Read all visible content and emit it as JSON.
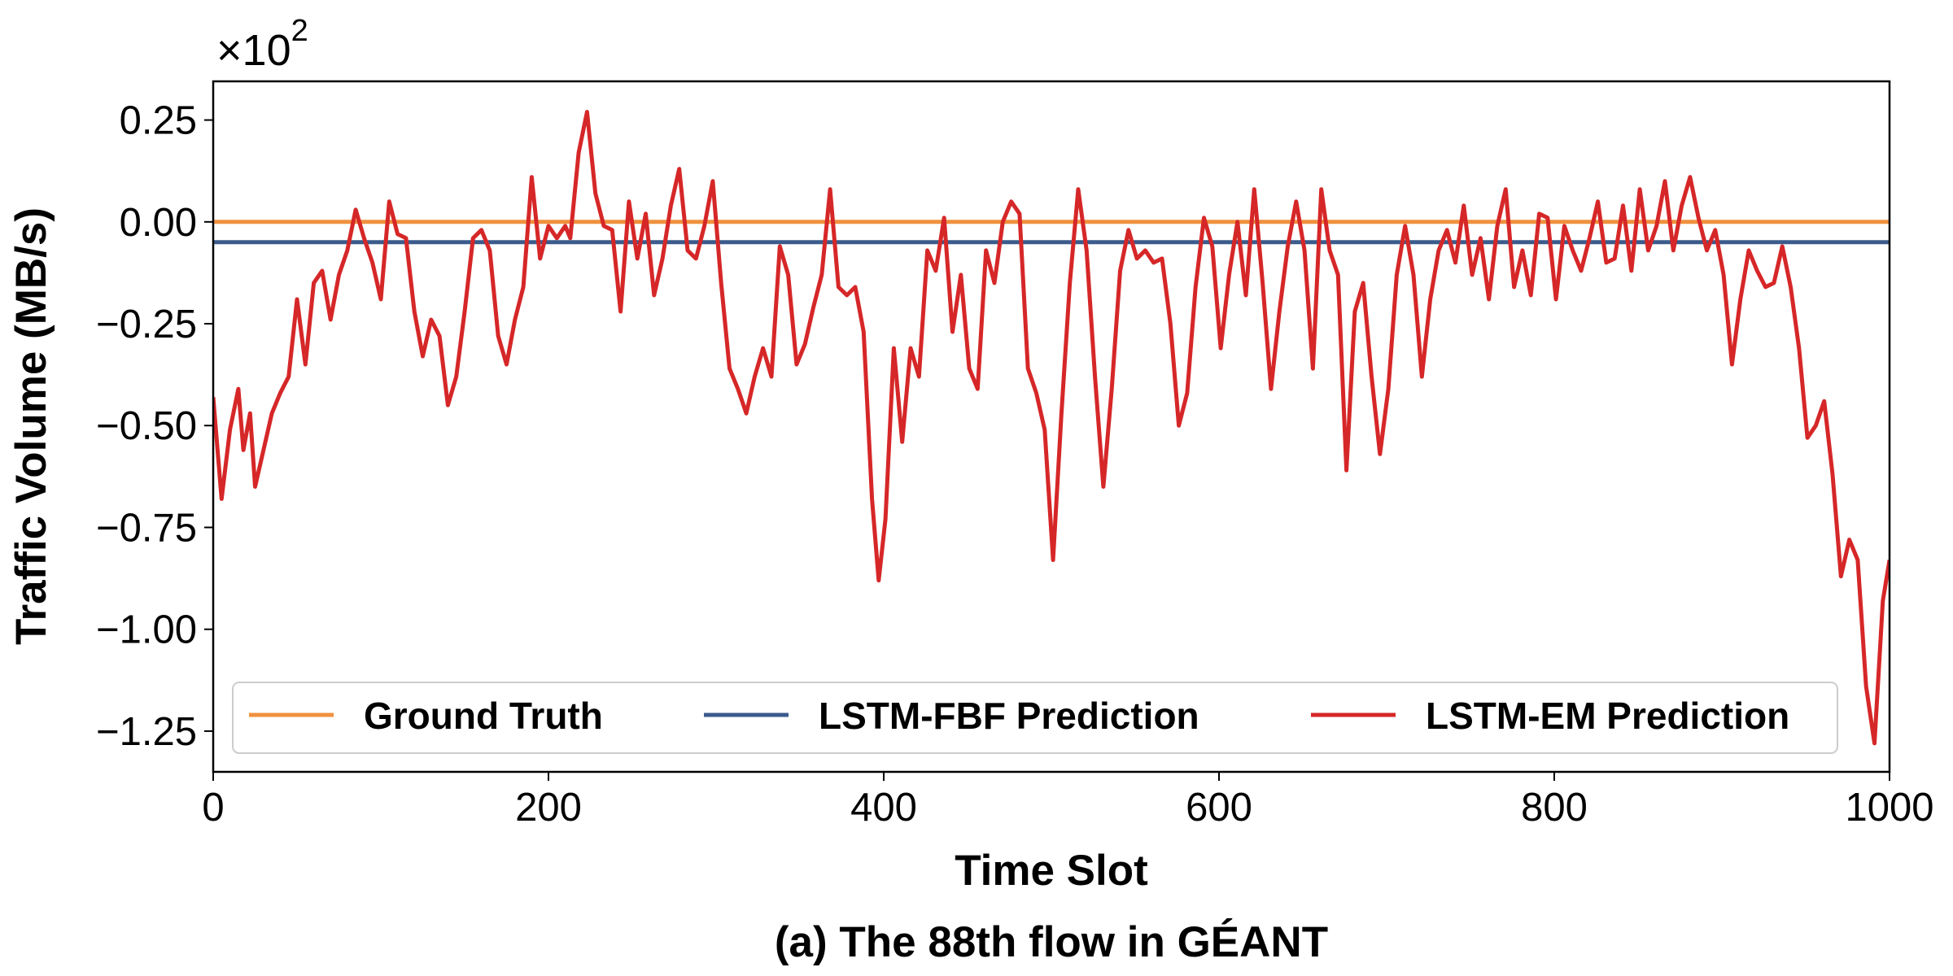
{
  "chart_data": {
    "type": "line",
    "title": "(a) The 88th flow in GÉANT",
    "xlabel": "Time Slot",
    "ylabel": "Traffic Volume (MB/s)",
    "y_multiplier": "×10",
    "y_multiplier_exponent": "2",
    "xlim": [
      0,
      1000
    ],
    "xticks": [
      0,
      200,
      400,
      600,
      800,
      1000
    ],
    "ylim": [
      -1.35,
      0.345
    ],
    "yticks": [
      0.25,
      {
        "value": 0,
        "label": "0.00"
      },
      {
        "value": -0.25,
        "label": "−0.25"
      },
      {
        "value": -0.5,
        "label": "−0.50"
      },
      {
        "value": -0.75,
        "label": "−0.75"
      },
      {
        "value": -1,
        "label": "−1.00"
      },
      {
        "value": -1.25,
        "label": "−1.25"
      }
    ],
    "grid": false,
    "legend": "lower center",
    "series": [
      {
        "name": "Ground Truth",
        "color": "#f0913e",
        "x": [
          0,
          1000
        ],
        "values": [
          0,
          0
        ]
      },
      {
        "name": "LSTM-FBF Prediction",
        "color": "#3b5b8c",
        "x": [
          0,
          1000
        ],
        "values": [
          -0.05,
          -0.05
        ]
      },
      {
        "name": "LSTM-EM Prediction",
        "color": "#d62728",
        "x": [
          0,
          5,
          10,
          15,
          18,
          22,
          25,
          30,
          35,
          40,
          45,
          50,
          55,
          60,
          65,
          70,
          75,
          80,
          85,
          90,
          95,
          100,
          105,
          110,
          115,
          120,
          125,
          130,
          135,
          140,
          145,
          150,
          155,
          160,
          165,
          170,
          175,
          180,
          185,
          190,
          195,
          200,
          205,
          210,
          213,
          218,
          223,
          228,
          233,
          238,
          243,
          248,
          253,
          258,
          263,
          268,
          273,
          278,
          283,
          288,
          293,
          298,
          303,
          308,
          313,
          318,
          323,
          328,
          333,
          338,
          343,
          348,
          353,
          358,
          363,
          368,
          373,
          378,
          383,
          388,
          393,
          397,
          401,
          406,
          411,
          416,
          421,
          426,
          431,
          436,
          441,
          446,
          451,
          456,
          461,
          466,
          471,
          476,
          481,
          486,
          491,
          496,
          501,
          506,
          511,
          516,
          521,
          526,
          531,
          536,
          541,
          546,
          551,
          556,
          561,
          566,
          571,
          576,
          581,
          586,
          591,
          596,
          601,
          606,
          611,
          616,
          621,
          626,
          631,
          636,
          641,
          646,
          651,
          656,
          661,
          666,
          671,
          676,
          681,
          686,
          691,
          696,
          701,
          706,
          711,
          716,
          721,
          726,
          731,
          736,
          741,
          746,
          751,
          756,
          761,
          766,
          771,
          776,
          781,
          786,
          791,
          796,
          801,
          806,
          811,
          816,
          821,
          826,
          831,
          836,
          841,
          846,
          851,
          856,
          861,
          866,
          871,
          876,
          881,
          886,
          891,
          896,
          901,
          906,
          911,
          916,
          921,
          926,
          931,
          936,
          941,
          946,
          951,
          956,
          961,
          966,
          971,
          976,
          981,
          986,
          991,
          996,
          1000
        ],
        "values": [
          -0.43,
          -0.68,
          -0.51,
          -0.41,
          -0.56,
          -0.47,
          -0.65,
          -0.56,
          -0.47,
          -0.42,
          -0.38,
          -0.19,
          -0.35,
          -0.15,
          -0.12,
          -0.24,
          -0.13,
          -0.07,
          0.03,
          -0.04,
          -0.1,
          -0.19,
          0.05,
          -0.03,
          -0.04,
          -0.22,
          -0.33,
          -0.24,
          -0.28,
          -0.45,
          -0.38,
          -0.22,
          -0.04,
          -0.02,
          -0.07,
          -0.28,
          -0.35,
          -0.24,
          -0.16,
          0.11,
          -0.09,
          -0.01,
          -0.04,
          -0.01,
          -0.04,
          0.17,
          0.27,
          0.07,
          -0.01,
          -0.02,
          -0.22,
          0.05,
          -0.09,
          0.02,
          -0.18,
          -0.09,
          0.04,
          0.13,
          -0.07,
          -0.09,
          -0.01,
          0.1,
          -0.15,
          -0.36,
          -0.41,
          -0.47,
          -0.38,
          -0.31,
          -0.38,
          -0.06,
          -0.13,
          -0.35,
          -0.3,
          -0.21,
          -0.13,
          0.08,
          -0.16,
          -0.18,
          -0.16,
          -0.27,
          -0.68,
          -0.88,
          -0.73,
          -0.31,
          -0.54,
          -0.31,
          -0.38,
          -0.07,
          -0.12,
          0.01,
          -0.27,
          -0.13,
          -0.36,
          -0.41,
          -0.07,
          -0.15,
          0,
          0.05,
          0.02,
          -0.36,
          -0.42,
          -0.51,
          -0.83,
          -0.47,
          -0.15,
          0.08,
          -0.07,
          -0.38,
          -0.65,
          -0.41,
          -0.12,
          -0.02,
          -0.09,
          -0.07,
          -0.1,
          -0.09,
          -0.25,
          -0.5,
          -0.42,
          -0.16,
          0.01,
          -0.06,
          -0.31,
          -0.13,
          0,
          -0.18,
          0.08,
          -0.15,
          -0.41,
          -0.22,
          -0.06,
          0.05,
          -0.07,
          -0.36,
          0.08,
          -0.07,
          -0.13,
          -0.61,
          -0.22,
          -0.15,
          -0.38,
          -0.57,
          -0.41,
          -0.13,
          -0.01,
          -0.13,
          -0.38,
          -0.19,
          -0.07,
          -0.02,
          -0.1,
          0.04,
          -0.13,
          -0.04,
          -0.19,
          -0.01,
          0.08,
          -0.16,
          -0.07,
          -0.18,
          0.02,
          0.01,
          -0.19,
          -0.01,
          -0.07,
          -0.12,
          -0.04,
          0.05,
          -0.1,
          -0.09,
          0.04,
          -0.12,
          0.08,
          -0.07,
          -0.01,
          0.1,
          -0.07,
          0.04,
          0.11,
          0.01,
          -0.07,
          -0.02,
          -0.13,
          -0.35,
          -0.19,
          -0.07,
          -0.12,
          -0.16,
          -0.15,
          -0.06,
          -0.16,
          -0.31,
          -0.53,
          -0.5,
          -0.44,
          -0.62,
          -0.87,
          -0.78,
          -0.83,
          -1.14,
          -1.28,
          -0.93,
          -0.83
        ]
      }
    ]
  }
}
